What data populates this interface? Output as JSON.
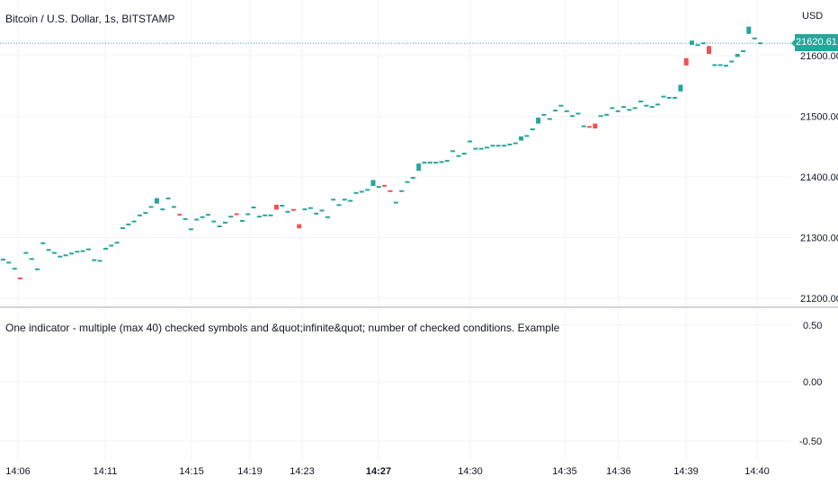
{
  "header": {
    "symbol_title": "Bitcoin / U.S. Dollar, 1s, BITSTAMP",
    "currency": "USD"
  },
  "last_price": "21620.61",
  "indicator": {
    "title": "One indicator - multiple (max 40) checked symbols and &quot;infinite&quot; number of checked conditions. Example",
    "y_ticks": [
      "0.50",
      "0.00",
      "-0.50"
    ]
  },
  "colors": {
    "up": "#26a69a",
    "down": "#ef5350",
    "grid": "#f0f3fa",
    "badge": "#26a69a",
    "text": "#131722"
  },
  "chart_data": {
    "type": "candlestick",
    "x_ticks": [
      {
        "label": "14:06",
        "bold": false
      },
      {
        "label": "14:11",
        "bold": false
      },
      {
        "label": "14:15",
        "bold": false
      },
      {
        "label": "14:19",
        "bold": false
      },
      {
        "label": "14:23",
        "bold": false
      },
      {
        "label": "14:27",
        "bold": true
      },
      {
        "label": "14:30",
        "bold": false
      },
      {
        "label": "14:35",
        "bold": false
      },
      {
        "label": "14:36",
        "bold": false
      },
      {
        "label": "14:39",
        "bold": false
      },
      {
        "label": "14:40",
        "bold": false
      }
    ],
    "y_ticks": [
      21600,
      21500,
      21400,
      21300,
      21200
    ],
    "y_tick_labels": [
      "21600.00",
      "21500.00",
      "21400.00",
      "21300.00",
      "21200.00"
    ],
    "y_range": [
      21188,
      21692
    ],
    "last_price": 21620.61,
    "candles": [
      [
        21263,
        21265,
        "u"
      ],
      [
        21258,
        21260,
        "u"
      ],
      [
        21248,
        21250,
        "u"
      ],
      [
        21232,
        21234,
        "d"
      ],
      [
        21274,
        21276,
        "u"
      ],
      [
        21264,
        21266,
        "u"
      ],
      [
        21247,
        21249,
        "u"
      ],
      [
        21290,
        21292,
        "u"
      ],
      [
        21279,
        21281,
        "u"
      ],
      [
        21274,
        21276,
        "u"
      ],
      [
        21268,
        21270,
        "u"
      ],
      [
        21270,
        21272,
        "u"
      ],
      [
        21272,
        21275,
        "u"
      ],
      [
        21276,
        21278,
        "u"
      ],
      [
        21277,
        21279,
        "u"
      ],
      [
        21280,
        21282,
        "u"
      ],
      [
        21262,
        21264,
        "u"
      ],
      [
        21261,
        21263,
        "u"
      ],
      [
        21281,
        21283,
        "u"
      ],
      [
        21286,
        21288,
        "u"
      ],
      [
        21290,
        21293,
        "u"
      ],
      [
        21315,
        21317,
        "u"
      ],
      [
        21321,
        21323,
        "u"
      ],
      [
        21326,
        21328,
        "u"
      ],
      [
        21336,
        21338,
        "u"
      ],
      [
        21340,
        21342,
        "u"
      ],
      [
        21350,
        21352,
        "u"
      ],
      [
        21356,
        21365,
        "u"
      ],
      [
        21346,
        21348,
        "u"
      ],
      [
        21364,
        21366,
        "u"
      ],
      [
        21350,
        21352,
        "u"
      ],
      [
        21337,
        21339,
        "d"
      ],
      [
        21330,
        21332,
        "u"
      ],
      [
        21313,
        21315,
        "u"
      ],
      [
        21329,
        21331,
        "u"
      ],
      [
        21333,
        21335,
        "u"
      ],
      [
        21337,
        21339,
        "u"
      ],
      [
        21326,
        21328,
        "u"
      ],
      [
        21318,
        21320,
        "u"
      ],
      [
        21324,
        21326,
        "u"
      ],
      [
        21334,
        21336,
        "u"
      ],
      [
        21338,
        21340,
        "d"
      ],
      [
        21327,
        21329,
        "u"
      ],
      [
        21338,
        21340,
        "u"
      ],
      [
        21349,
        21351,
        "u"
      ],
      [
        21334,
        21336,
        "u"
      ],
      [
        21336,
        21338,
        "u"
      ],
      [
        21336,
        21338,
        "u"
      ],
      [
        21346,
        21354,
        "d"
      ],
      [
        21352,
        21354,
        "u"
      ],
      [
        21342,
        21344,
        "u"
      ],
      [
        21345,
        21347,
        "d"
      ],
      [
        21315,
        21322,
        "d"
      ],
      [
        21346,
        21348,
        "u"
      ],
      [
        21348,
        21350,
        "u"
      ],
      [
        21339,
        21341,
        "u"
      ],
      [
        21344,
        21346,
        "u"
      ],
      [
        21333,
        21335,
        "u"
      ],
      [
        21362,
        21364,
        "u"
      ],
      [
        21353,
        21355,
        "u"
      ],
      [
        21362,
        21364,
        "u"
      ],
      [
        21360,
        21362,
        "u"
      ],
      [
        21373,
        21375,
        "u"
      ],
      [
        21375,
        21377,
        "u"
      ],
      [
        21378,
        21380,
        "u"
      ],
      [
        21385,
        21395,
        "u"
      ],
      [
        21383,
        21385,
        "u"
      ],
      [
        21385,
        21387,
        "d"
      ],
      [
        21376,
        21378,
        "d"
      ],
      [
        21357,
        21359,
        "u"
      ],
      [
        21376,
        21378,
        "u"
      ],
      [
        21391,
        21393,
        "u"
      ],
      [
        21398,
        21400,
        "u"
      ],
      [
        21410,
        21422,
        "u"
      ],
      [
        21423,
        21425,
        "u"
      ],
      [
        21423,
        21425,
        "u"
      ],
      [
        21423,
        21425,
        "u"
      ],
      [
        21424,
        21426,
        "u"
      ],
      [
        21426,
        21428,
        "u"
      ],
      [
        21442,
        21444,
        "u"
      ],
      [
        21434,
        21436,
        "u"
      ],
      [
        21438,
        21440,
        "u"
      ],
      [
        21458,
        21460,
        "u"
      ],
      [
        21446,
        21448,
        "u"
      ],
      [
        21446,
        21448,
        "u"
      ],
      [
        21448,
        21450,
        "u"
      ],
      [
        21451,
        21453,
        "u"
      ],
      [
        21451,
        21453,
        "u"
      ],
      [
        21451,
        21453,
        "u"
      ],
      [
        21453,
        21455,
        "u"
      ],
      [
        21455,
        21457,
        "u"
      ],
      [
        21460,
        21467,
        "u"
      ],
      [
        21467,
        21469,
        "u"
      ],
      [
        21478,
        21480,
        "u"
      ],
      [
        21488,
        21498,
        "u"
      ],
      [
        21502,
        21504,
        "u"
      ],
      [
        21495,
        21497,
        "u"
      ],
      [
        21509,
        21511,
        "u"
      ],
      [
        21517,
        21519,
        "u"
      ],
      [
        21508,
        21510,
        "u"
      ],
      [
        21500,
        21502,
        "u"
      ],
      [
        21504,
        21506,
        "u"
      ],
      [
        21483,
        21485,
        "u"
      ],
      [
        21482,
        21484,
        "d"
      ],
      [
        21480,
        21488,
        "d"
      ],
      [
        21500,
        21502,
        "u"
      ],
      [
        21502,
        21504,
        "u"
      ],
      [
        21513,
        21515,
        "u"
      ],
      [
        21508,
        21510,
        "u"
      ],
      [
        21515,
        21517,
        "u"
      ],
      [
        21510,
        21512,
        "u"
      ],
      [
        21513,
        21515,
        "u"
      ],
      [
        21524,
        21526,
        "u"
      ],
      [
        21517,
        21519,
        "u"
      ],
      [
        21515,
        21517,
        "u"
      ],
      [
        21519,
        21521,
        "u"
      ],
      [
        21532,
        21534,
        "u"
      ],
      [
        21530,
        21532,
        "u"
      ],
      [
        21530,
        21532,
        "u"
      ],
      [
        21541,
        21552,
        "u"
      ],
      [
        21584,
        21596,
        "d"
      ],
      [
        21618,
        21625,
        "u"
      ],
      [
        21617,
        21619,
        "u"
      ],
      [
        21620,
        21622,
        "u"
      ],
      [
        21603,
        21616,
        "d"
      ],
      [
        21584,
        21586,
        "u"
      ],
      [
        21584,
        21586,
        "u"
      ],
      [
        21583,
        21585,
        "u"
      ],
      [
        21590,
        21592,
        "u"
      ],
      [
        21598,
        21603,
        "u"
      ],
      [
        21607,
        21609,
        "u"
      ],
      [
        21636,
        21648,
        "u"
      ],
      [
        21627,
        21630,
        "u"
      ],
      [
        21620,
        21622,
        "u"
      ]
    ]
  }
}
